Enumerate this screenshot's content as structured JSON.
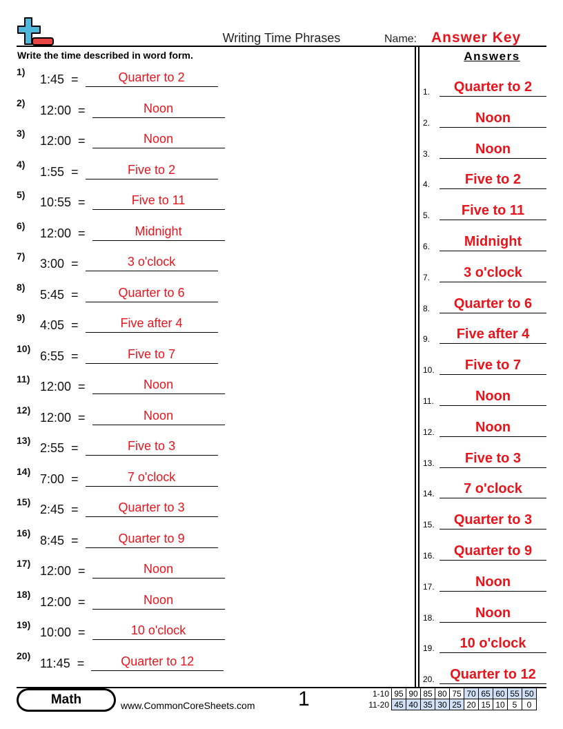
{
  "header": {
    "title": "Writing Time Phrases",
    "name_label": "Name:",
    "name_value": "Answer Key",
    "instructions": "Write the time described in word form.",
    "logo_icon": "plus-minus-logo"
  },
  "questions": [
    {
      "num": "1)",
      "time": "1:45",
      "answer": "Quarter to 2"
    },
    {
      "num": "2)",
      "time": "12:00",
      "answer": "Noon"
    },
    {
      "num": "3)",
      "time": "12:00",
      "answer": "Noon"
    },
    {
      "num": "4)",
      "time": "1:55",
      "answer": "Five to 2"
    },
    {
      "num": "5)",
      "time": "10:55",
      "answer": "Five to 11"
    },
    {
      "num": "6)",
      "time": "12:00",
      "answer": "Midnight"
    },
    {
      "num": "7)",
      "time": "3:00",
      "answer": "3 o'clock"
    },
    {
      "num": "8)",
      "time": "5:45",
      "answer": "Quarter to 6"
    },
    {
      "num": "9)",
      "time": "4:05",
      "answer": "Five after 4"
    },
    {
      "num": "10)",
      "time": "6:55",
      "answer": "Five to 7"
    },
    {
      "num": "11)",
      "time": "12:00",
      "answer": "Noon"
    },
    {
      "num": "12)",
      "time": "12:00",
      "answer": "Noon"
    },
    {
      "num": "13)",
      "time": "2:55",
      "answer": "Five to 3"
    },
    {
      "num": "14)",
      "time": "7:00",
      "answer": "7 o'clock"
    },
    {
      "num": "15)",
      "time": "2:45",
      "answer": "Quarter to 3"
    },
    {
      "num": "16)",
      "time": "8:45",
      "answer": "Quarter to 9"
    },
    {
      "num": "17)",
      "time": "12:00",
      "answer": "Noon"
    },
    {
      "num": "18)",
      "time": "12:00",
      "answer": "Noon"
    },
    {
      "num": "19)",
      "time": "10:00",
      "answer": "10 o'clock"
    },
    {
      "num": "20)",
      "time": "11:45",
      "answer": "Quarter to 12"
    }
  ],
  "equals": "=",
  "answers": {
    "heading": "Answers",
    "items": [
      {
        "num": "1.",
        "answer": "Quarter to 2"
      },
      {
        "num": "2.",
        "answer": "Noon"
      },
      {
        "num": "3.",
        "answer": "Noon"
      },
      {
        "num": "4.",
        "answer": "Five to 2"
      },
      {
        "num": "5.",
        "answer": "Five to 11"
      },
      {
        "num": "6.",
        "answer": "Midnight"
      },
      {
        "num": "7.",
        "answer": "3 o'clock"
      },
      {
        "num": "8.",
        "answer": "Quarter to 6"
      },
      {
        "num": "9.",
        "answer": "Five after 4"
      },
      {
        "num": "10.",
        "answer": "Five to 7"
      },
      {
        "num": "11.",
        "answer": "Noon"
      },
      {
        "num": "12.",
        "answer": "Noon"
      },
      {
        "num": "13.",
        "answer": "Five to 3"
      },
      {
        "num": "14.",
        "answer": "7 o'clock"
      },
      {
        "num": "15.",
        "answer": "Quarter to 3"
      },
      {
        "num": "16.",
        "answer": "Quarter to 9"
      },
      {
        "num": "17.",
        "answer": "Noon"
      },
      {
        "num": "18.",
        "answer": "Noon"
      },
      {
        "num": "19.",
        "answer": "10 o'clock"
      },
      {
        "num": "20.",
        "answer": "Quarter to 12"
      }
    ]
  },
  "footer": {
    "subject": "Math",
    "url": "www.CommonCoreSheets.com",
    "page": "1",
    "score_rows": [
      {
        "label": "1-10",
        "values": [
          "95",
          "90",
          "85",
          "80",
          "75",
          "70",
          "65",
          "60",
          "55",
          "50"
        ],
        "highlight_from": 5
      },
      {
        "label": "11-20",
        "values": [
          "45",
          "40",
          "35",
          "30",
          "25",
          "20",
          "15",
          "10",
          "5",
          "0"
        ],
        "highlight_to": 5
      }
    ]
  },
  "colors": {
    "answer": "#e8141c",
    "logo_plus": "#4fb8dc",
    "logo_minus": "#e84444",
    "score_highlight": "#cfe0f7"
  }
}
